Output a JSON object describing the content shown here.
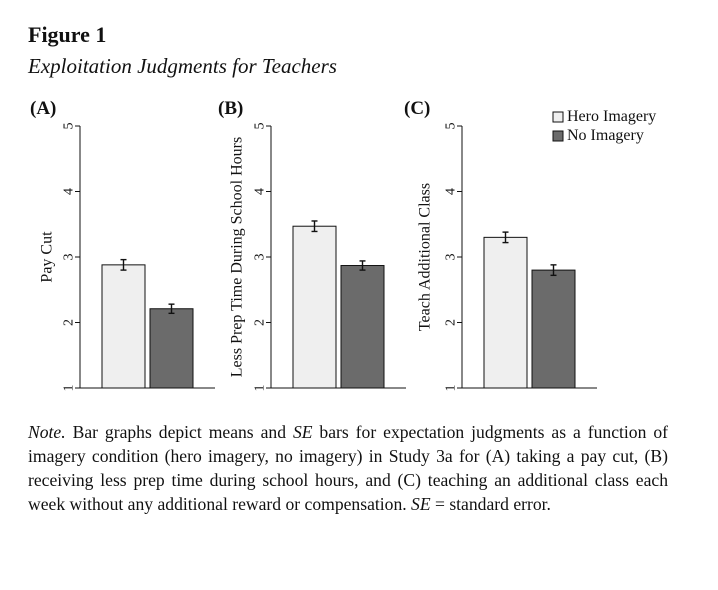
{
  "figure": {
    "label": "Figure 1",
    "title": "Exploitation Judgments for Teachers"
  },
  "legend": {
    "hero": "Hero Imagery",
    "none": "No Imagery"
  },
  "colors": {
    "hero": "#efefef",
    "none": "#6b6b6b",
    "stroke": "#111111"
  },
  "chart_data": [
    {
      "type": "bar",
      "panel": "(A)",
      "ylabel": "Pay Cut",
      "ylim": [
        1,
        5
      ],
      "yticks": [
        "1",
        "2",
        "3",
        "4",
        "5"
      ],
      "series": [
        {
          "name": "Hero Imagery",
          "value": 2.88,
          "se": 0.08
        },
        {
          "name": "No Imagery",
          "value": 2.21,
          "se": 0.07
        }
      ]
    },
    {
      "type": "bar",
      "panel": "(B)",
      "ylabel": "Less Prep Time During School Hours",
      "ylim": [
        1,
        5
      ],
      "yticks": [
        "1",
        "2",
        "3",
        "4",
        "5"
      ],
      "series": [
        {
          "name": "Hero Imagery",
          "value": 3.47,
          "se": 0.08
        },
        {
          "name": "No Imagery",
          "value": 2.87,
          "se": 0.07
        }
      ]
    },
    {
      "type": "bar",
      "panel": "(C)",
      "ylabel": "Teach Additional Class",
      "ylim": [
        1,
        5
      ],
      "yticks": [
        "1",
        "2",
        "3",
        "4",
        "5"
      ],
      "series": [
        {
          "name": "Hero Imagery",
          "value": 3.3,
          "se": 0.08
        },
        {
          "name": "No Imagery",
          "value": 2.8,
          "se": 0.08
        }
      ]
    }
  ],
  "note": {
    "lead": "Note.",
    "p1": " Bar graphs depict means and ",
    "se1": "SE",
    "p2": " bars for expectation judgments as a function of imagery condition (hero imagery, no imagery) in Study 3a for (A) taking a pay cut, (B) receiving less prep time during school hours, and (C) teaching an additional class each week without any additional reward or compensation. ",
    "se2": "SE",
    "p3": " = standard error."
  }
}
